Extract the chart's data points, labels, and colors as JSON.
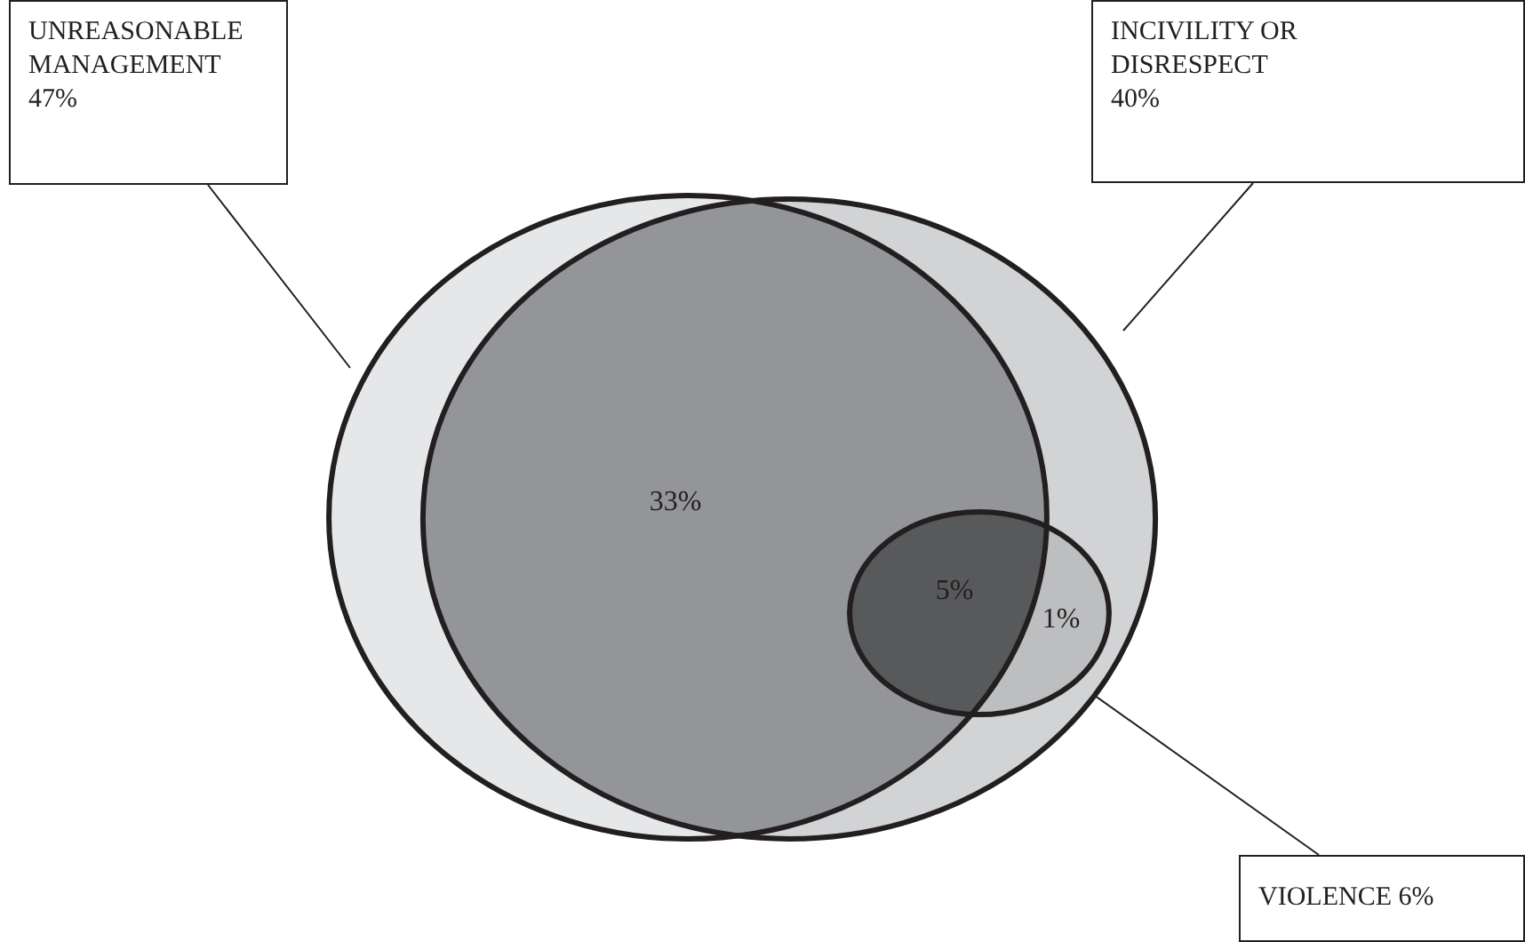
{
  "chart_data": {
    "type": "other",
    "categories": [
      "UNREASONABLE MANAGEMENT",
      "INCIVILITY OR DISRESPECT",
      "VIOLENCE"
    ],
    "values": [
      47,
      40,
      6
    ],
    "value_labels": [
      "47%",
      "40%",
      "6%"
    ],
    "colors": [
      "#e6e7e8",
      "#d1d3d4",
      "#bcbec0"
    ],
    "annotations": [
      "33%",
      "5%",
      "1%"
    ]
  }
}
